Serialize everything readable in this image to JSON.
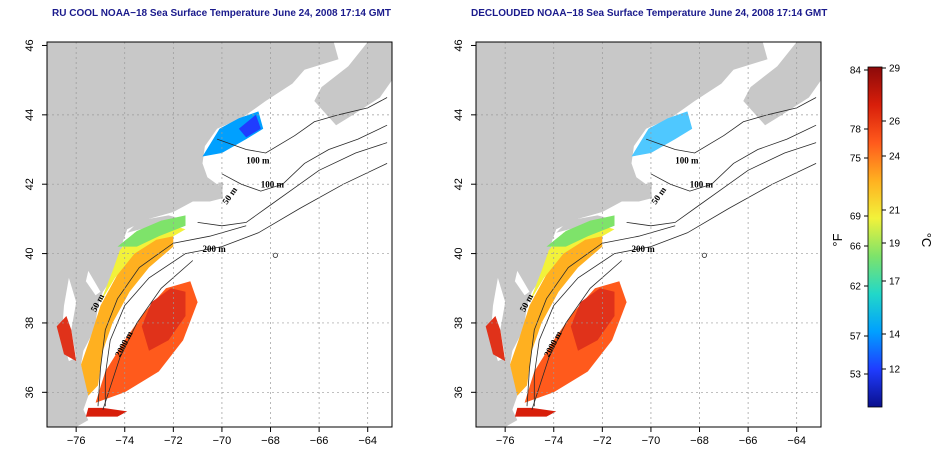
{
  "panels": [
    {
      "title": "RU COOL NOAA−18 Sea Surface Temperature June 24, 2008 17:14 GMT",
      "contour_labels": [
        "100 m",
        "100 m",
        "50 m",
        "200 m",
        "50 m",
        "2000 m"
      ],
      "variant": "full"
    },
    {
      "title": "DECLOUDED NOAA−18 Sea Surface Temperature June 24, 2008 17:14 GMT",
      "contour_labels": [
        "100 m",
        "100 m",
        "50 m",
        "200 m",
        "50 m",
        "2000 m"
      ],
      "variant": "declouded"
    }
  ],
  "axes": {
    "x_ticks": [
      "−76",
      "−74",
      "−72",
      "−70",
      "−68",
      "−66",
      "−64"
    ],
    "y_ticks": [
      "36",
      "38",
      "40",
      "42",
      "44",
      "46"
    ]
  },
  "colorbar": {
    "fahrenheit_label": "°F",
    "celsius_label": "°C",
    "fahrenheit_ticks": [
      "84",
      "78",
      "75",
      "69",
      "66",
      "62",
      "57",
      "53"
    ],
    "celsius_ticks": [
      "29",
      "26",
      "24",
      "21",
      "19",
      "17",
      "14",
      "12"
    ],
    "colors": [
      "#0a0f8c",
      "#1f3cff",
      "#00a0ff",
      "#22d8c8",
      "#7ee36a",
      "#f2f23a",
      "#ffb020",
      "#ff5a1c",
      "#d81e0a",
      "#8c0a0a"
    ]
  },
  "map_colors": {
    "land": "#c8c8c8",
    "water": "#ffffff",
    "grid": "#9a9a9a"
  }
}
